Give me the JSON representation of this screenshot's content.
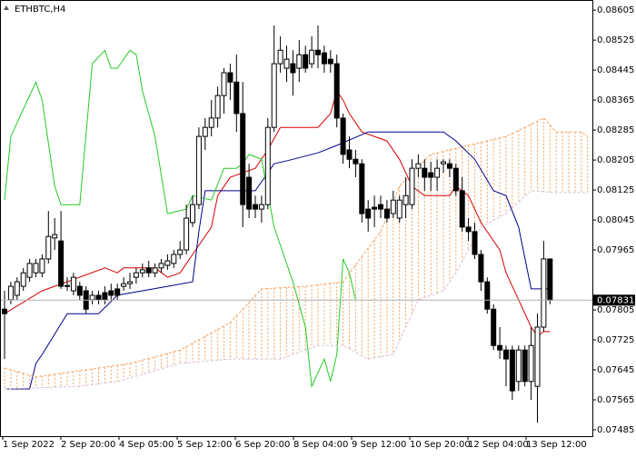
{
  "chart_data": {
    "type": "candlestick",
    "title": "ETHBTC,H4",
    "ylim": [
      0.07468,
      0.08632
    ],
    "yticks": [
      0.08605,
      0.08525,
      0.08445,
      0.08365,
      0.08285,
      0.08205,
      0.08125,
      0.08045,
      0.07965,
      0.07805,
      0.07725,
      0.07645,
      0.07565,
      0.07485
    ],
    "x_labels": [
      "1 Sep 2022",
      "2 Sep 20:00",
      "4 Sep 05:00",
      "5 Sep 12:00",
      "6 Sep 20:00",
      "8 Sep 04:00",
      "9 Sep 12:00",
      "10 Sep 20:00",
      "12 Sep 04:00",
      "13 Sep 12:00"
    ],
    "last_price": 0.07831,
    "candles": [
      [
        0.07807,
        0.07856,
        0.07674,
        0.07795
      ],
      [
        0.07832,
        0.0788,
        0.0782,
        0.07868
      ],
      [
        0.07844,
        0.07892,
        0.07832,
        0.0788
      ],
      [
        0.07868,
        0.07917,
        0.07856,
        0.07904
      ],
      [
        0.07892,
        0.07941,
        0.0788,
        0.07929
      ],
      [
        0.07904,
        0.07941,
        0.07892,
        0.07929
      ],
      [
        0.07904,
        0.07953,
        0.07892,
        0.07941
      ],
      [
        0.07941,
        0.08069,
        0.07929,
        0.08001
      ],
      [
        0.07997,
        0.0805,
        0.07965,
        0.08006
      ],
      [
        0.07989,
        0.08069,
        0.07861,
        0.07868
      ],
      [
        0.07868,
        0.07892,
        0.07856,
        0.0787
      ],
      [
        0.07856,
        0.07904,
        0.07844,
        0.07892
      ],
      [
        0.07868,
        0.0788,
        0.07832,
        0.07844
      ],
      [
        0.07856,
        0.07868,
        0.07795,
        0.07807
      ],
      [
        0.07832,
        0.07856,
        0.0782,
        0.07844
      ],
      [
        0.07844,
        0.07856,
        0.0782,
        0.07832
      ],
      [
        0.07851,
        0.07868,
        0.0782,
        0.07832
      ],
      [
        0.07856,
        0.07875,
        0.07832,
        0.07844
      ],
      [
        0.07861,
        0.07875,
        0.07832,
        0.07844
      ],
      [
        0.07868,
        0.07892,
        0.07856,
        0.07875
      ],
      [
        0.07875,
        0.07904,
        0.07861,
        0.0788
      ],
      [
        0.07892,
        0.07917,
        0.07875,
        0.07904
      ],
      [
        0.07904,
        0.07929,
        0.07892,
        0.07912
      ],
      [
        0.07917,
        0.07936,
        0.07892,
        0.07904
      ],
      [
        0.07904,
        0.07929,
        0.07892,
        0.07917
      ],
      [
        0.07917,
        0.07941,
        0.07904,
        0.07929
      ],
      [
        0.07924,
        0.07953,
        0.07912,
        0.07936
      ],
      [
        0.07929,
        0.07965,
        0.07917,
        0.07953
      ],
      [
        0.07953,
        0.07989,
        0.07941,
        0.07965
      ],
      [
        0.07965,
        0.08086,
        0.07953,
        0.0805
      ],
      [
        0.08038,
        0.0811,
        0.08026,
        0.08086
      ],
      [
        0.08086,
        0.08292,
        0.08074,
        0.08268
      ],
      [
        0.08268,
        0.08317,
        0.08232,
        0.08292
      ],
      [
        0.08292,
        0.08365,
        0.08268,
        0.08317
      ],
      [
        0.08317,
        0.08401,
        0.08292,
        0.08377
      ],
      [
        0.08377,
        0.0845,
        0.08329,
        0.08438
      ],
      [
        0.08438,
        0.08462,
        0.08365,
        0.08413
      ],
      [
        0.08413,
        0.08486,
        0.0828,
        0.08329
      ],
      [
        0.08329,
        0.08413,
        0.08026,
        0.08086
      ],
      [
        0.08159,
        0.08195,
        0.0805,
        0.08074
      ],
      [
        0.08086,
        0.0811,
        0.0805,
        0.08074
      ],
      [
        0.08074,
        0.0811,
        0.08038,
        0.08086
      ],
      [
        0.08086,
        0.08317,
        0.08074,
        0.08292
      ],
      [
        0.08292,
        0.08564,
        0.0828,
        0.08462
      ],
      [
        0.08462,
        0.08535,
        0.08438,
        0.08498
      ],
      [
        0.0845,
        0.0851,
        0.08413,
        0.08474
      ],
      [
        0.08462,
        0.08498,
        0.08377,
        0.08438
      ],
      [
        0.0845,
        0.08525,
        0.08413,
        0.08486
      ],
      [
        0.08486,
        0.0851,
        0.08438,
        0.0845
      ],
      [
        0.08462,
        0.08535,
        0.0845,
        0.08498
      ],
      [
        0.08498,
        0.08564,
        0.0845,
        0.08486
      ],
      [
        0.08491,
        0.0851,
        0.08438,
        0.08462
      ],
      [
        0.08474,
        0.08498,
        0.08438,
        0.08462
      ],
      [
        0.08462,
        0.08486,
        0.08292,
        0.08317
      ],
      [
        0.08317,
        0.08329,
        0.08195,
        0.0822
      ],
      [
        0.08232,
        0.08268,
        0.08183,
        0.08207
      ],
      [
        0.08207,
        0.08232,
        0.08159,
        0.08195
      ],
      [
        0.08195,
        0.08207,
        0.08038,
        0.08062
      ],
      [
        0.08074,
        0.08098,
        0.08014,
        0.0805
      ],
      [
        0.08079,
        0.0811,
        0.08026,
        0.08074
      ],
      [
        0.08086,
        0.0811,
        0.0805,
        0.08074
      ],
      [
        0.08074,
        0.08098,
        0.08038,
        0.0805
      ],
      [
        0.08062,
        0.08123,
        0.0805,
        0.08098
      ],
      [
        0.0805,
        0.0811,
        0.08038,
        0.08098
      ],
      [
        0.08086,
        0.08159,
        0.0805,
        0.0811
      ],
      [
        0.08086,
        0.08207,
        0.08074,
        0.08183
      ],
      [
        0.08183,
        0.0822,
        0.08159,
        0.08195
      ],
      [
        0.08183,
        0.08207,
        0.08123,
        0.08159
      ],
      [
        0.08171,
        0.082,
        0.08123,
        0.08159
      ],
      [
        0.08159,
        0.08207,
        0.08123,
        0.08183
      ],
      [
        0.08195,
        0.08207,
        0.08171,
        0.082
      ],
      [
        0.08195,
        0.08207,
        0.08159,
        0.08183
      ],
      [
        0.08183,
        0.08195,
        0.0811,
        0.08123
      ],
      [
        0.08123,
        0.08159,
        0.08014,
        0.08026
      ],
      [
        0.08026,
        0.0805,
        0.07989,
        0.08014
      ],
      [
        0.08014,
        0.08038,
        0.07941,
        0.07953
      ],
      [
        0.07953,
        0.07965,
        0.07856,
        0.0788
      ],
      [
        0.0788,
        0.07892,
        0.07795,
        0.07807
      ],
      [
        0.07807,
        0.0782,
        0.07698,
        0.0771
      ],
      [
        0.0771,
        0.07759,
        0.07674,
        0.07698
      ],
      [
        0.07698,
        0.0771,
        0.07601,
        0.07674
      ],
      [
        0.07698,
        0.0771,
        0.07565,
        0.07589
      ],
      [
        0.07614,
        0.0771,
        0.07589,
        0.07698
      ],
      [
        0.07698,
        0.0771,
        0.07601,
        0.07614
      ],
      [
        0.07614,
        0.07759,
        0.07565,
        0.0771
      ],
      [
        0.07601,
        0.07795,
        0.07504,
        0.07759
      ],
      [
        0.07759,
        0.07989,
        0.07747,
        0.07941
      ],
      [
        0.07941,
        0.07941,
        0.0782,
        0.07831
      ]
    ],
    "series": [
      {
        "color": "#d40000",
        "x": [
          0,
          6,
          10,
          16,
          18,
          19,
          24,
          26,
          28,
          30,
          33,
          34,
          36,
          40,
          42,
          44,
          50,
          52,
          53,
          54,
          55,
          57,
          61,
          63,
          65,
          67,
          71,
          72,
          74,
          76,
          79,
          80,
          82,
          84,
          85,
          86,
          87
        ],
        "values": [
          0.07795,
          0.07856,
          0.0788,
          0.07917,
          0.07904,
          0.07917,
          0.07917,
          0.07892,
          0.07904,
          0.07953,
          0.08026,
          0.0811,
          0.08159,
          0.08183,
          0.08232,
          0.08292,
          0.08292,
          0.08329,
          0.08389,
          0.08365,
          0.08329,
          0.0828,
          0.08256,
          0.08207,
          0.08135,
          0.0811,
          0.0811,
          0.08135,
          0.0811,
          0.08038,
          0.07965,
          0.07904,
          0.07832,
          0.07759,
          0.07735,
          0.07747,
          0.07747
        ]
      },
      {
        "color": "#00008b",
        "x": [
          0,
          4,
          5,
          6,
          10,
          15,
          18,
          26,
          30,
          31,
          32,
          40,
          43,
          46,
          50,
          53,
          58,
          70,
          72,
          75,
          78,
          80,
          82,
          84,
          87
        ],
        "values": [
          0.07594,
          0.07594,
          0.07662,
          0.07686,
          0.07795,
          0.07795,
          0.07844,
          0.07868,
          0.0788,
          0.08014,
          0.08123,
          0.08123,
          0.08195,
          0.08207,
          0.08224,
          0.08244,
          0.0828,
          0.0828,
          0.08256,
          0.08207,
          0.08123,
          0.0811,
          0.08026,
          0.07861,
          0.07861
        ]
      },
      {
        "color": "#22cc22",
        "x": [
          0,
          1,
          5,
          6,
          8,
          9,
          12,
          14,
          16,
          17,
          18,
          20,
          21,
          22,
          24,
          26,
          29,
          30,
          33,
          35,
          37,
          38,
          39,
          41,
          43,
          46,
          48,
          49,
          51,
          52,
          53,
          54,
          55,
          56
        ],
        "values": [
          0.08098,
          0.08268,
          0.08413,
          0.08365,
          0.08135,
          0.08086,
          0.08086,
          0.08462,
          0.08498,
          0.0845,
          0.0845,
          0.08498,
          0.08486,
          0.08389,
          0.08268,
          0.08062,
          0.08074,
          0.0811,
          0.08098,
          0.08183,
          0.08183,
          0.08195,
          0.0822,
          0.08207,
          0.08026,
          0.0788,
          0.07759,
          0.07601,
          0.07674,
          0.07614,
          0.07686,
          0.07941,
          0.07904,
          0.07832
        ]
      },
      {
        "color": "#f4a460",
        "x": [
          0,
          5,
          20,
          28,
          36,
          41,
          48,
          54,
          60,
          63,
          68,
          74,
          80,
          83,
          86,
          88,
          92,
          93
        ],
        "values": [
          0.0765,
          0.07626,
          0.07662,
          0.07698,
          0.07771,
          0.07861,
          0.07868,
          0.0788,
          0.08014,
          0.08135,
          0.0822,
          0.08244,
          0.08268,
          0.08292,
          0.08317,
          0.0828,
          0.0828,
          0.08268
        ]
      },
      {
        "color": "#d8bfd8",
        "x": [
          0,
          12,
          18,
          28,
          36,
          44,
          50,
          54,
          58,
          62,
          66,
          70,
          72,
          76,
          80,
          84,
          88,
          93
        ],
        "values": [
          0.07594,
          0.07601,
          0.07614,
          0.07662,
          0.07674,
          0.07674,
          0.0771,
          0.0771,
          0.07674,
          0.07686,
          0.07832,
          0.07856,
          0.07904,
          0.08026,
          0.08062,
          0.08123,
          0.08118,
          0.08118
        ]
      }
    ]
  }
}
